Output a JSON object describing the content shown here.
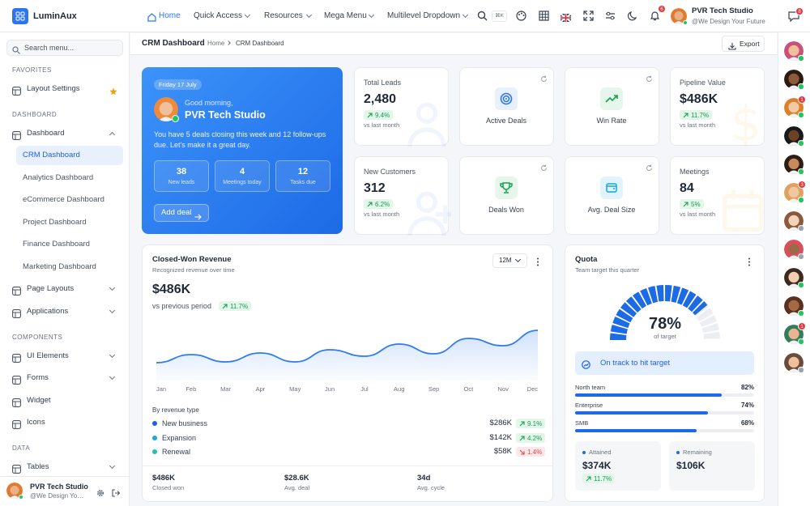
{
  "brand": "LuminAux",
  "topnav": {
    "items": [
      "Home",
      "Quick Access",
      "Resources",
      "Mega Menu",
      "Multilevel Dropdown"
    ],
    "search_shortcut": "⌘K",
    "notifications": "6",
    "user": {
      "name": "PVR Tech Studio",
      "tagline": "@We Design Your Future"
    }
  },
  "sidebar": {
    "search": "Search menu...",
    "sections": [
      {
        "title": "FAVORITES",
        "items": [
          {
            "label": "Layout Settings"
          }
        ]
      },
      {
        "title": "DASHBOARD",
        "items": [
          {
            "label": "Dashboard",
            "children": [
              "CRM Dashboard",
              "Analytics Dashboard",
              "eCommerce Dashboard",
              "Project Dashboard",
              "Finance Dashboard",
              "Marketing Dashboard"
            ]
          },
          {
            "label": "Page Layouts"
          },
          {
            "label": "Applications"
          }
        ]
      },
      {
        "title": "COMPONENTS",
        "items": [
          {
            "label": "UI Elements"
          },
          {
            "label": "Forms"
          },
          {
            "label": "Widget"
          },
          {
            "label": "Icons"
          }
        ]
      },
      {
        "title": "DATA",
        "items": [
          {
            "label": "Tables"
          }
        ]
      }
    ],
    "user": {
      "name": "PVR Tech Studio",
      "tagline": "@We Design Your Future"
    }
  },
  "page": {
    "title": "CRM Dashboard",
    "breadcrumb": [
      "Home",
      "CRM Dashboard"
    ],
    "export": "Export"
  },
  "welcome": {
    "date": "Friday 17 July",
    "greeting": "Good morning,",
    "name": "PVR Tech Studio",
    "message": "You have 5 deals closing this week and 12 follow-ups due. Let's make it a great day.",
    "stats": [
      {
        "value": "38",
        "label": "New leads"
      },
      {
        "value": "4",
        "label": "Meetings today"
      },
      {
        "value": "12",
        "label": "Tasks due"
      }
    ],
    "button": "Add deal"
  },
  "kpis": [
    {
      "title": "Total Leads",
      "value": "2,480",
      "change": "9.4%",
      "note": "vs last month"
    },
    {
      "title": "Active Deals"
    },
    {
      "title": "Win Rate"
    },
    {
      "title": "Pipeline Value",
      "value": "$486K",
      "change": "11.7%",
      "note": "vs last month"
    },
    {
      "title": "New Customers",
      "value": "312",
      "change": "6.2%",
      "note": "vs last month"
    },
    {
      "title": "Deals Won"
    },
    {
      "title": "Avg. Deal Size"
    },
    {
      "title": "Meetings",
      "value": "84",
      "change": "5%",
      "note": "vs last month"
    }
  ],
  "revenue": {
    "title": "Closed-Won Revenue",
    "subtitle": "Recognized revenue over time",
    "period": "12M",
    "total": "$486K",
    "compare": "vs previous period",
    "change": "11.7%",
    "breakdown_title": "By revenue type",
    "breakdown": [
      {
        "name": "New business",
        "value": "$286K",
        "change": "9.1%",
        "color": "#1d5fe6"
      },
      {
        "name": "Expansion",
        "value": "$142K",
        "change": "4.2%",
        "color": "#23a6d5"
      },
      {
        "name": "Renewal",
        "value": "$58K",
        "change": "1.4%",
        "color": "#22c1b5"
      }
    ],
    "footer": [
      {
        "value": "$486K",
        "label": "Closed won"
      },
      {
        "value": "$28.6K",
        "label": "Avg. deal"
      },
      {
        "value": "34d",
        "label": "Avg. cycle"
      }
    ]
  },
  "chart_data": {
    "type": "line",
    "categories": [
      "Jan",
      "Feb",
      "Mar",
      "Apr",
      "May",
      "Jun",
      "Jul",
      "Aug",
      "Sep",
      "Oct",
      "Nov",
      "Dec"
    ],
    "values": [
      22,
      32,
      23,
      34,
      23,
      38,
      30,
      45,
      33,
      52,
      43,
      62
    ],
    "ylim": [
      0,
      80
    ],
    "color": "#2f7bf0"
  },
  "quota": {
    "title": "Quota",
    "subtitle": "Team target this quarter",
    "gauge": {
      "value": 78,
      "label": "78%",
      "caption": "of target"
    },
    "status": "On track to hit target",
    "teams": [
      {
        "name": "North team",
        "value": 82,
        "value_label": "82%"
      },
      {
        "name": "Enterprise",
        "value": 74,
        "value_label": "74%"
      },
      {
        "name": "SMB",
        "value": 68,
        "value_label": "68%"
      }
    ],
    "attained": {
      "label": "Attained",
      "value": "$374K",
      "change": "11.7%"
    },
    "remaining": {
      "label": "Remaining",
      "value": "$106K"
    }
  },
  "rail": {
    "notifications": "8",
    "avatar_badges": [
      null,
      null,
      "1",
      null,
      null,
      "3",
      null,
      null,
      null,
      null,
      "1",
      null
    ]
  }
}
